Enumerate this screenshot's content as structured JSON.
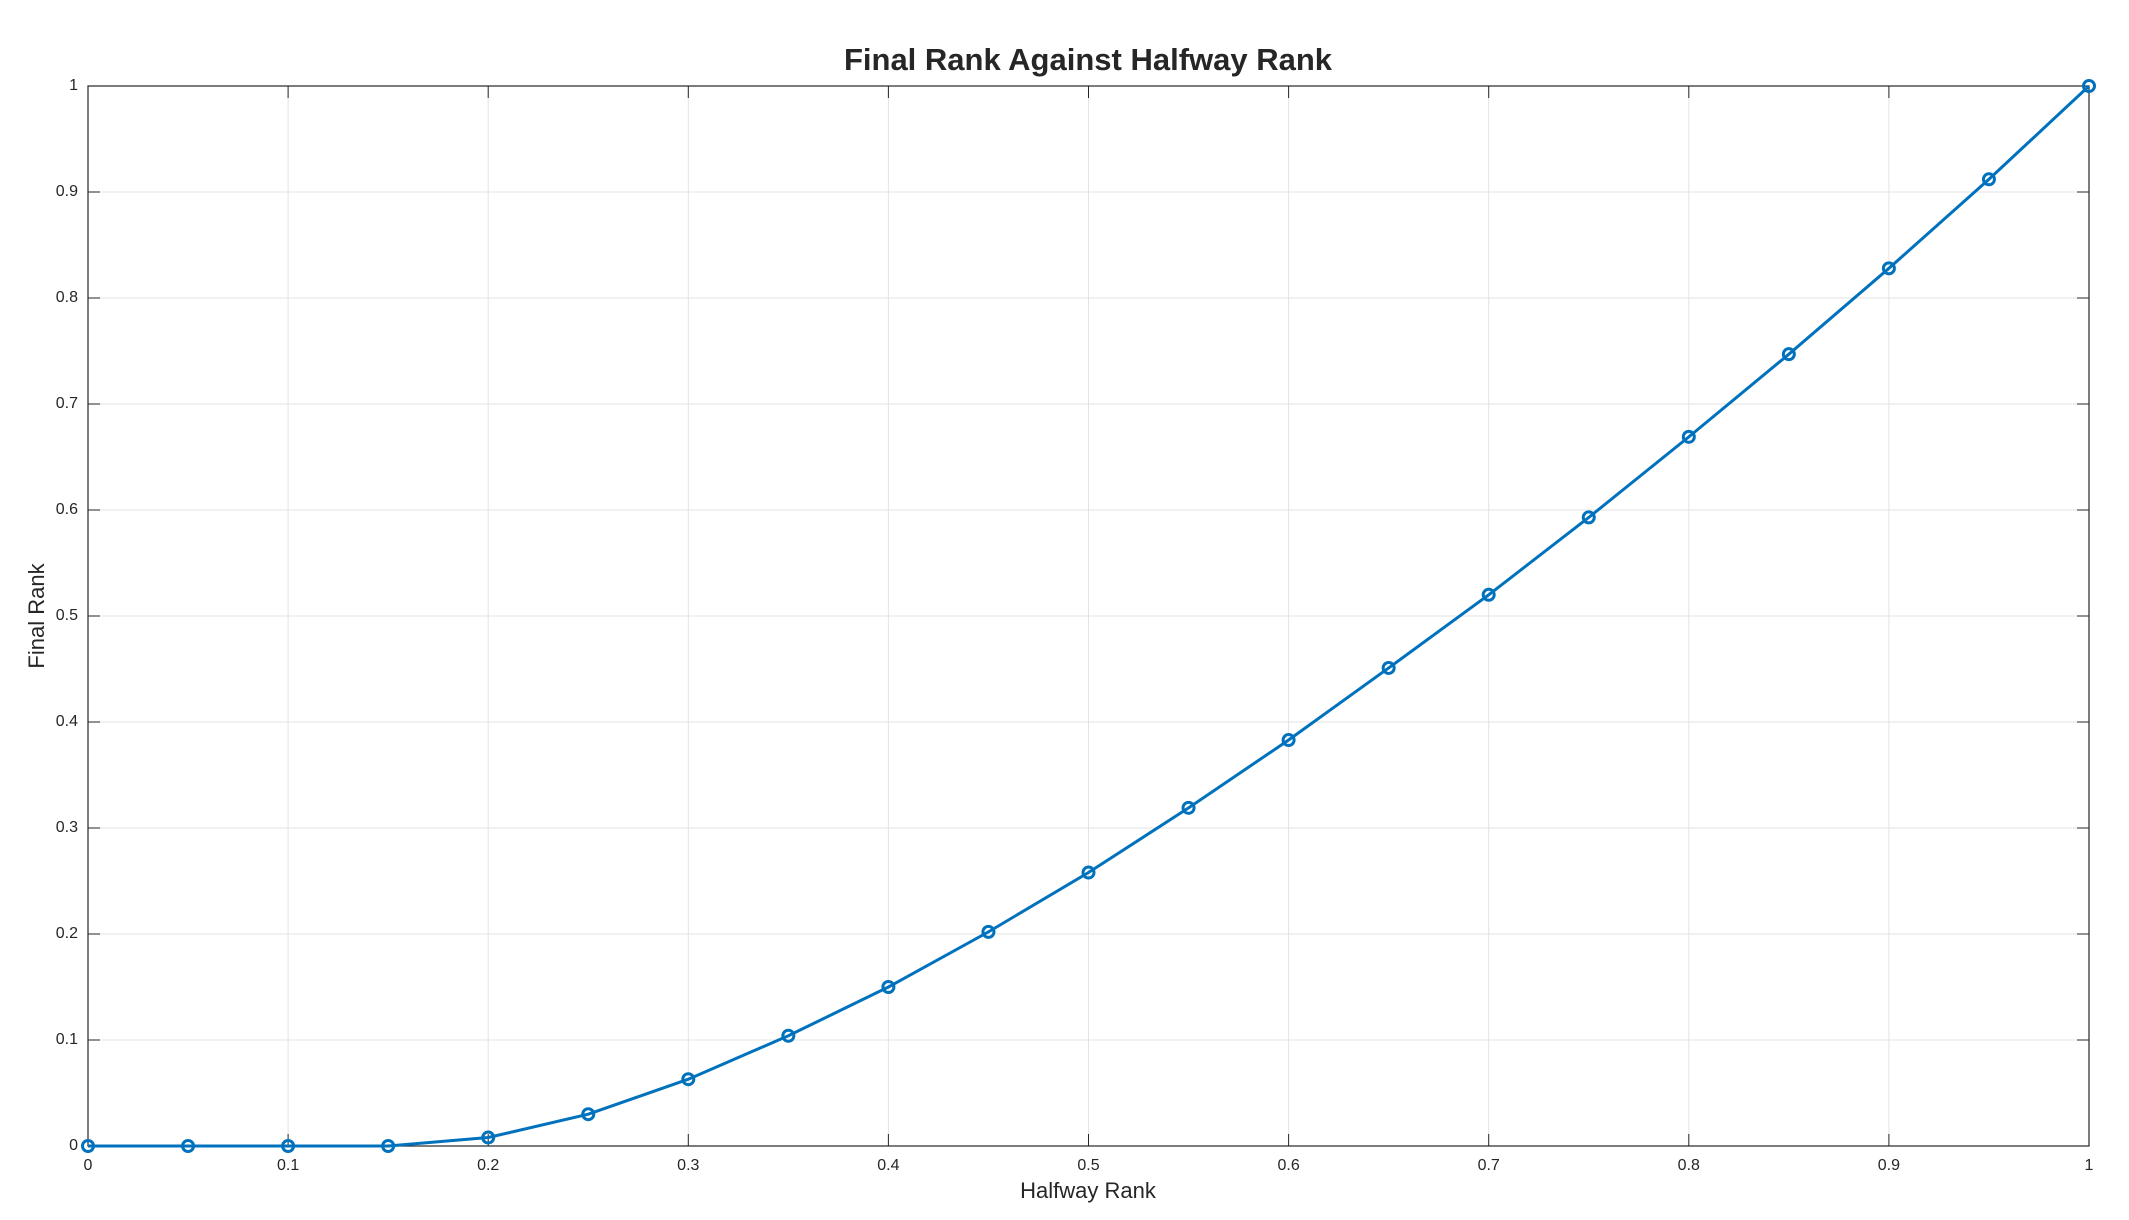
{
  "chart_data": {
    "type": "line",
    "title": "Final Rank Against Halfway Rank",
    "x_label": "Halfway Rank",
    "y_label": "Final Rank",
    "x": [
      0,
      0.05,
      0.1,
      0.15,
      0.2,
      0.25,
      0.3,
      0.35,
      0.4,
      0.45,
      0.5,
      0.55,
      0.6,
      0.65,
      0.7,
      0.75,
      0.8,
      0.85,
      0.9,
      0.95,
      1
    ],
    "series": [
      {
        "color": "#0072bd",
        "values": [
          0,
          0,
          0,
          0,
          0.008,
          0.03,
          0.063,
          0.104,
          0.15,
          0.202,
          0.258,
          0.319,
          0.383,
          0.451,
          0.52,
          0.593,
          0.669,
          0.747,
          0.828,
          0.912,
          1.0
        ]
      }
    ],
    "xlim": [
      0,
      1
    ],
    "ylim": [
      0,
      1
    ],
    "xticks": [
      0,
      0.1,
      0.2,
      0.3,
      0.4,
      0.5,
      0.6,
      0.7,
      0.8,
      0.9,
      1
    ],
    "yticks": [
      0,
      0.1,
      0.2,
      0.3,
      0.4,
      0.5,
      0.6,
      0.7,
      0.8,
      0.9,
      1
    ],
    "grid": true,
    "marker": "circle"
  }
}
